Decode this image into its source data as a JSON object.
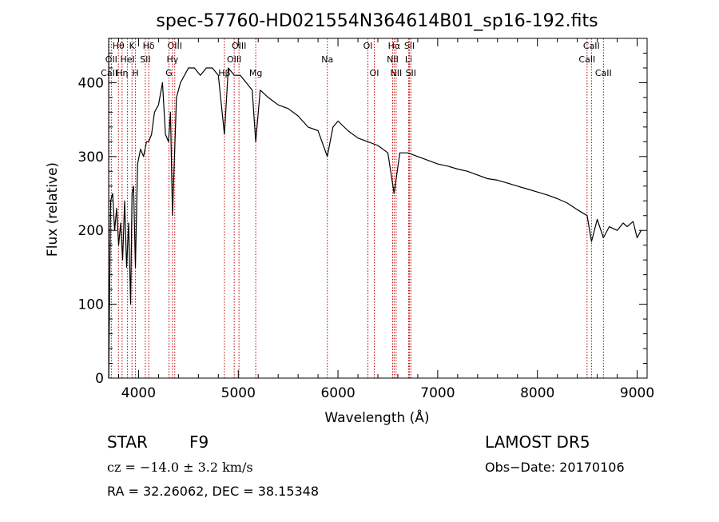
{
  "chart_data": {
    "type": "line",
    "title": "spec-57760-HD021554N364614B01_sp16-192.fits",
    "xlabel": "Wavelength (Å)",
    "ylabel": "Flux (relative)",
    "xlim": [
      3700,
      9100
    ],
    "ylim": [
      0,
      460
    ],
    "xticks": [
      4000,
      5000,
      6000,
      7000,
      8000,
      9000
    ],
    "yticks": [
      0,
      100,
      200,
      300,
      400
    ],
    "xtick_labels": [
      "4000",
      "5000",
      "6000",
      "7000",
      "8000",
      "9000"
    ],
    "ytick_labels": [
      "0",
      "100",
      "200",
      "300",
      "400"
    ],
    "grid": false,
    "series": [
      {
        "x": [
          3700,
          3720,
          3740,
          3760,
          3780,
          3800,
          3820,
          3840,
          3860,
          3880,
          3900,
          3920,
          3935,
          3950,
          3968,
          3990,
          4020,
          4050,
          4080,
          4101,
          4130,
          4160,
          4200,
          4240,
          4270,
          4300,
          4320,
          4340,
          4380,
          4420,
          4460,
          4500,
          4560,
          4620,
          4680,
          4740,
          4800,
          4861,
          4900,
          4960,
          5020,
          5080,
          5140,
          5175,
          5220,
          5300,
          5400,
          5500,
          5600,
          5700,
          5800,
          5893,
          5950,
          6000,
          6100,
          6200,
          6300,
          6400,
          6500,
          6563,
          6620,
          6700,
          6800,
          6900,
          7000,
          7100,
          7200,
          7300,
          7400,
          7500,
          7600,
          7700,
          7800,
          7900,
          8000,
          8100,
          8200,
          8300,
          8400,
          8498,
          8542,
          8600,
          8662,
          8720,
          8800,
          8860,
          8900,
          8960,
          9000,
          9040
        ],
        "y": [
          0,
          240,
          250,
          200,
          230,
          180,
          210,
          160,
          240,
          150,
          210,
          100,
          250,
          260,
          150,
          290,
          310,
          300,
          320,
          320,
          330,
          360,
          370,
          400,
          330,
          320,
          360,
          220,
          380,
          400,
          410,
          420,
          420,
          410,
          420,
          420,
          410,
          330,
          420,
          410,
          410,
          400,
          390,
          320,
          390,
          380,
          370,
          365,
          355,
          340,
          335,
          300,
          340,
          348,
          335,
          325,
          320,
          315,
          305,
          250,
          305,
          305,
          300,
          295,
          290,
          287,
          283,
          280,
          275,
          270,
          268,
          264,
          260,
          256,
          252,
          248,
          243,
          237,
          228,
          220,
          185,
          215,
          190,
          205,
          200,
          210,
          205,
          212,
          190,
          200
        ]
      }
    ],
    "line_markers": [
      {
        "label": "Hθ",
        "wl": 3798,
        "row": 0
      },
      {
        "label": "OII",
        "wl": 3727,
        "row": 1
      },
      {
        "label": "CaII",
        "wl": 3705,
        "row": 2
      },
      {
        "label": "K",
        "wl": 3934,
        "row": 0
      },
      {
        "label": "HeI",
        "wl": 3889,
        "row": 1
      },
      {
        "label": "Hη",
        "wl": 3835,
        "row": 2
      },
      {
        "label": "Hδ",
        "wl": 4102,
        "row": 0
      },
      {
        "label": "SII",
        "wl": 4068,
        "row": 1
      },
      {
        "label": "H",
        "wl": 3969,
        "row": 2
      },
      {
        "label": "OIII",
        "wl": 4363,
        "row": 0
      },
      {
        "label": "Hγ",
        "wl": 4340,
        "row": 1
      },
      {
        "label": "G",
        "wl": 4305,
        "row": 2
      },
      {
        "label": "OIII",
        "wl": 5007,
        "row": 0
      },
      {
        "label": "OIII",
        "wl": 4959,
        "row": 1
      },
      {
        "label": "Hβ",
        "wl": 4861,
        "row": 2
      },
      {
        "label": "Mg",
        "wl": 5175,
        "row": 2
      },
      {
        "label": "Na",
        "wl": 5893,
        "row": 1
      },
      {
        "label": "OI",
        "wl": 6300,
        "row": 0
      },
      {
        "label": "OI",
        "wl": 6364,
        "row": 2
      },
      {
        "label": "Hα",
        "wl": 6563,
        "row": 0
      },
      {
        "label": "NII",
        "wl": 6548,
        "row": 1
      },
      {
        "label": "NII",
        "wl": 6583,
        "row": 2
      },
      {
        "label": "SII",
        "wl": 6717,
        "row": 0
      },
      {
        "label": "Li",
        "wl": 6708,
        "row": 1
      },
      {
        "label": "SII",
        "wl": 6731,
        "row": 2
      },
      {
        "label": "CaII",
        "wl": 8542,
        "row": 0
      },
      {
        "label": "CaII",
        "wl": 8498,
        "row": 1
      },
      {
        "label": "CaII",
        "wl": 8662,
        "row": 2
      }
    ],
    "line_color": "#000000",
    "marker_color": "#c00000"
  },
  "info": {
    "object_class": "STAR",
    "subclass": "F9",
    "survey": "LAMOST DR5",
    "redshift": "cz = −14.0 ± 3.2 km/s",
    "obs_date": "Obs−Date: 20170106",
    "coords": "RA =  32.26062, DEC =  38.15348"
  }
}
